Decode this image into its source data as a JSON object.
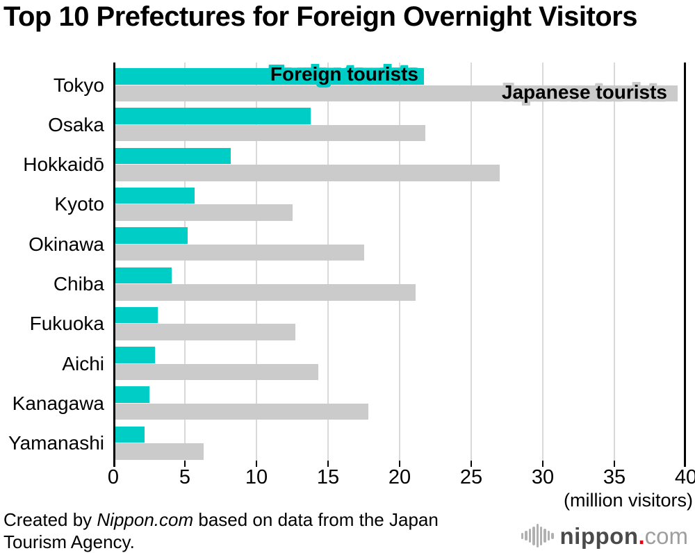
{
  "title": "Top 10 Prefectures for Foreign Overnight Visitors",
  "chart_data": {
    "type": "bar",
    "orientation": "horizontal",
    "title": "Top 10 Prefectures for Foreign Overnight Visitors",
    "categories": [
      "Tokyo",
      "Osaka",
      "Hokkaidō",
      "Kyoto",
      "Okinawa",
      "Chiba",
      "Fukuoka",
      "Aichi",
      "Kanagawa",
      "Yamanashi"
    ],
    "series": [
      {
        "name": "Foreign tourists",
        "color": "#00cec6",
        "values": [
          21.7,
          13.8,
          8.2,
          5.7,
          5.2,
          4.1,
          3.1,
          2.9,
          2.5,
          2.2
        ]
      },
      {
        "name": "Japanese tourists",
        "color": "#cbcbcb",
        "values": [
          39.4,
          21.8,
          27.0,
          12.5,
          17.5,
          21.1,
          12.7,
          14.3,
          17.8,
          6.3
        ]
      }
    ],
    "xlim": [
      0,
      40
    ],
    "x_ticks": [
      0,
      5,
      10,
      15,
      20,
      25,
      30,
      35,
      40
    ],
    "x_unit_label": "(million visitors)",
    "grid": "vertical-gridlines",
    "legend_position": "inside-first-row",
    "axis_color": "#000000",
    "gridline_color": "#d9d9d9"
  },
  "footer": {
    "credit_prefix": "Created by ",
    "credit_source": "Nippon.com",
    "credit_line1_suffix": " based on data from the Japan",
    "credit_line2": "Tourism Agency."
  },
  "logo": {
    "name": "nippon",
    "dot": ".",
    "tld": "com",
    "dot_color": "#e60012"
  }
}
